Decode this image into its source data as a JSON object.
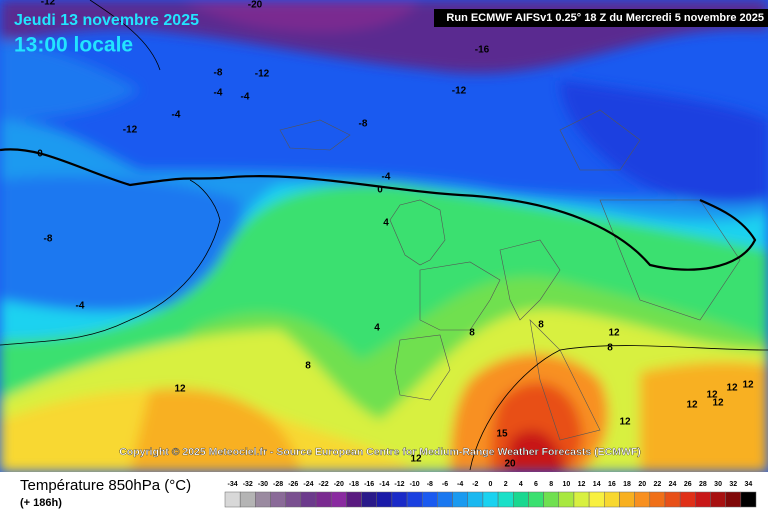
{
  "header": {
    "date": "Jeudi 13 novembre 2025",
    "time": "13:00 locale",
    "run": "Run ECMWF AIFSv1 0.25° 18 Z du Mercredi 5 novembre 2025"
  },
  "copyright": "Copyright © 2025 Meteociel.fr - Source European Centre for Medium-Range Weather Forecasts (ECMWF)",
  "legend": {
    "title": "Température 850hPa (°C)",
    "lead": "(+ 186h)",
    "values": [
      -34,
      -32,
      -30,
      -28,
      -26,
      -24,
      -22,
      -20,
      -18,
      -16,
      -14,
      -12,
      -10,
      -8,
      -6,
      -4,
      -2,
      0,
      2,
      4,
      6,
      8,
      10,
      12,
      14,
      16,
      18,
      20,
      22,
      24,
      26,
      28,
      30,
      32,
      34
    ],
    "colors": [
      "#d8d8d8",
      "#b4b4b4",
      "#9a8aa0",
      "#8a6a98",
      "#7a5090",
      "#6c3a8c",
      "#7a2a90",
      "#8a2aa0",
      "#5a1a80",
      "#2a1a8a",
      "#1a1aa8",
      "#1a2ac8",
      "#1a40e0",
      "#1a5af0",
      "#1a78f0",
      "#1a9af0",
      "#1ab8f0",
      "#1ad2f0",
      "#1ae0c8",
      "#1ad890",
      "#3ae070",
      "#70e050",
      "#a8e840",
      "#d8f040",
      "#f8f040",
      "#f8d830",
      "#f8b020",
      "#f89020",
      "#f07018",
      "#e85018",
      "#e03018",
      "#c81818",
      "#a81010",
      "#800808",
      "#000000"
    ]
  },
  "contours": [
    -12,
    -20,
    -16,
    -8,
    -12,
    -4,
    -4,
    -12,
    -4,
    -12,
    -8,
    0,
    -4,
    0,
    -8,
    4,
    -4,
    4,
    8,
    8,
    12,
    8,
    8,
    12,
    12,
    12,
    12,
    12,
    12,
    12,
    15,
    20,
    12
  ]
}
